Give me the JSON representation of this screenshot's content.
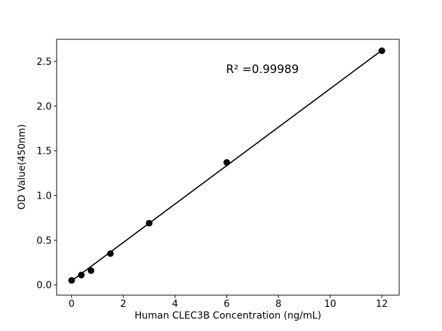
{
  "figure": {
    "background_color": "#ffffff",
    "foreground_color": "#000000"
  },
  "chart_data": {
    "type": "scatter",
    "title": "",
    "xlabel": "Human CLEC3B Concentration (ng/mL)",
    "ylabel": "OD Value(450nm)",
    "annotation": "R² =0.99989",
    "x": [
      0,
      0.375,
      0.75,
      1.5,
      3,
      6,
      12
    ],
    "y": [
      0.05,
      0.11,
      0.16,
      0.35,
      0.69,
      1.37,
      2.62
    ],
    "fit_line": {
      "x1": 0,
      "y1": 0.045,
      "x2": 12,
      "y2": 2.625,
      "r_squared": 0.99989
    },
    "xticks": {
      "values": [
        0,
        2,
        4,
        6,
        8,
        10,
        12
      ],
      "labels": [
        "0",
        "2",
        "4",
        "6",
        "8",
        "10",
        "12"
      ]
    },
    "yticks": {
      "values": [
        0,
        0.5,
        1.0,
        1.5,
        2.0,
        2.5
      ],
      "labels": [
        "0.0",
        "0.5",
        "1.0",
        "1.5",
        "2.0",
        "2.5"
      ]
    },
    "xlim": [
      -0.58,
      12.67
    ],
    "ylim": [
      -0.115,
      2.748
    ],
    "grid": false,
    "legend": "none",
    "marker_color": "#000000",
    "line_color": "#000000",
    "axis_color": "#000000"
  }
}
